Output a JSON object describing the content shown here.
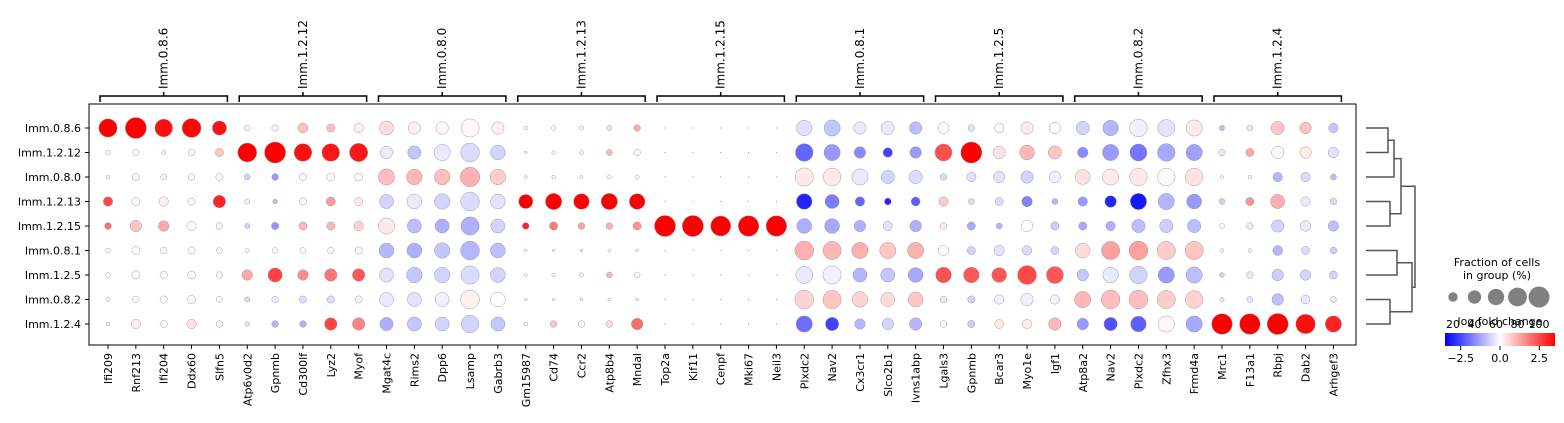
{
  "chart_data": {
    "type": "dotplot",
    "rows": [
      "Imm.0.8.6",
      "Imm.1.2.12",
      "Imm.0.8.0",
      "Imm.1.2.13",
      "Imm.1.2.15",
      "Imm.0.8.1",
      "Imm.1.2.5",
      "Imm.0.8.2",
      "Imm.1.2.4"
    ],
    "groups": [
      {
        "label": "Imm.0.8.6",
        "genes": [
          "Ifi209",
          "Rnf213",
          "Ifi204",
          "Ddx60",
          "Slfn5"
        ]
      },
      {
        "label": "Imm.1.2.12",
        "genes": [
          "Atp6v0d2",
          "Gpnmb",
          "Cd300lf",
          "Lyz2",
          "Myof"
        ]
      },
      {
        "label": "Imm.0.8.0",
        "genes": [
          "Mgat4c",
          "Rims2",
          "Dpp6",
          "Lsamp",
          "Gabrb3"
        ]
      },
      {
        "label": "Imm.1.2.13",
        "genes": [
          "Gm15987",
          "Cd74",
          "Ccr2",
          "Atp8b4",
          "Mndal"
        ]
      },
      {
        "label": "Imm.1.2.15",
        "genes": [
          "Top2a",
          "Kif11",
          "Cenpf",
          "Mki67",
          "Neil3"
        ]
      },
      {
        "label": "Imm.0.8.1",
        "genes": [
          "Plxdc2",
          "Nav2",
          "Cx3cr1",
          "Slco2b1",
          "Ivns1abp"
        ]
      },
      {
        "label": "Imm.1.2.5",
        "genes": [
          "Lgals3",
          "Gpnmb",
          "Bcar3",
          "Myo1e",
          "Igf1"
        ]
      },
      {
        "label": "Imm.0.8.2",
        "genes": [
          "Atp8a2",
          "Nav2",
          "Plxdc2",
          "Zfhx3",
          "Frmd4a"
        ]
      },
      {
        "label": "Imm.1.2.4",
        "genes": [
          "Mrc1",
          "F13a1",
          "Rbpj",
          "Dab2",
          "Arhgef3"
        ]
      }
    ],
    "fraction_pct": [
      [
        75,
        100,
        70,
        80,
        45,
        8,
        10,
        22,
        15,
        20,
        45,
        35,
        35,
        75,
        35,
        3,
        5,
        4,
        6,
        10,
        0,
        0,
        0,
        0,
        0,
        55,
        60,
        35,
        40,
        35,
        28,
        10,
        20,
        35,
        30,
        40,
        55,
        70,
        65,
        60,
        6,
        8,
        40,
        30,
        20
      ],
      [
        5,
        10,
        4,
        10,
        15,
        80,
        100,
        70,
        70,
        75,
        35,
        40,
        60,
        80,
        50,
        2,
        3,
        4,
        8,
        10,
        0,
        0,
        0,
        0,
        0,
        70,
        60,
        30,
        20,
        30,
        65,
        100,
        35,
        50,
        40,
        25,
        60,
        65,
        70,
        60,
        10,
        15,
        35,
        30,
        25
      ],
      [
        3,
        12,
        8,
        10,
        12,
        8,
        10,
        12,
        15,
        15,
        60,
        55,
        55,
        85,
        55,
        2,
        3,
        2,
        4,
        4,
        0,
        0,
        0,
        0,
        0,
        75,
        70,
        60,
        40,
        40,
        10,
        20,
        30,
        35,
        30,
        50,
        60,
        70,
        70,
        70,
        2,
        3,
        20,
        20,
        8
      ],
      [
        20,
        15,
        20,
        12,
        35,
        6,
        5,
        12,
        18,
        15,
        45,
        50,
        55,
        80,
        50,
        45,
        60,
        55,
        60,
        55,
        0,
        0,
        0,
        0,
        0,
        55,
        45,
        20,
        10,
        18,
        20,
        8,
        15,
        25,
        8,
        20,
        30,
        60,
        60,
        50,
        8,
        15,
        45,
        20,
        10
      ],
      [
        10,
        30,
        25,
        20,
        10,
        6,
        12,
        15,
        15,
        20,
        60,
        45,
        45,
        75,
        45,
        10,
        15,
        10,
        10,
        15,
        100,
        100,
        90,
        95,
        95,
        50,
        50,
        30,
        20,
        30,
        10,
        15,
        8,
        30,
        15,
        15,
        20,
        40,
        40,
        40,
        6,
        10,
        35,
        25,
        25
      ],
      [
        5,
        15,
        10,
        12,
        8,
        4,
        8,
        8,
        10,
        12,
        50,
        50,
        55,
        80,
        50,
        2,
        2,
        2,
        2,
        2,
        0,
        0,
        0,
        0,
        0,
        80,
        75,
        60,
        60,
        60,
        25,
        15,
        25,
        20,
        15,
        50,
        75,
        80,
        75,
        75,
        3,
        3,
        22,
        15,
        10
      ],
      [
        5,
        15,
        12,
        15,
        10,
        25,
        45,
        25,
        35,
        35,
        45,
        55,
        55,
        75,
        50,
        2,
        3,
        4,
        8,
        8,
        0,
        0,
        0,
        0,
        0,
        65,
        75,
        45,
        45,
        50,
        55,
        55,
        50,
        80,
        65,
        30,
        55,
        70,
        60,
        60,
        5,
        10,
        30,
        25,
        15
      ],
      [
        4,
        10,
        12,
        15,
        8,
        6,
        10,
        12,
        12,
        12,
        45,
        45,
        45,
        80,
        50,
        2,
        2,
        2,
        2,
        2,
        0,
        0,
        0,
        0,
        0,
        80,
        75,
        55,
        45,
        50,
        10,
        12,
        20,
        35,
        20,
        60,
        80,
        80,
        75,
        70,
        4,
        8,
        30,
        18,
        8
      ],
      [
        3,
        20,
        12,
        20,
        10,
        5,
        10,
        10,
        35,
        35,
        40,
        45,
        45,
        70,
        45,
        3,
        10,
        10,
        10,
        30,
        0,
        0,
        0,
        0,
        0,
        60,
        40,
        25,
        30,
        35,
        10,
        12,
        18,
        20,
        35,
        30,
        40,
        55,
        60,
        60,
        95,
        95,
        100,
        85,
        60
      ]
    ],
    "log_fold_change": [
      [
        3.5,
        3.5,
        3.3,
        3.4,
        3.3,
        0.2,
        0.2,
        0.9,
        0.9,
        0.2,
        0.5,
        0.2,
        0.1,
        0.1,
        0.2,
        0.1,
        0.1,
        0.2,
        0.5,
        1.2,
        0,
        0,
        0,
        0,
        0,
        -0.4,
        -0.8,
        -0.3,
        -0.3,
        -0.9,
        0.1,
        -0.4,
        0.1,
        0.3,
        0.1,
        -0.6,
        -1.0,
        -0.2,
        -0.4,
        0.3,
        -1.0,
        -0.3,
        0.8,
        0.8,
        -0.8
      ],
      [
        0.1,
        0.1,
        0.2,
        0.1,
        0.8,
        3.5,
        3.5,
        3.3,
        3.2,
        3.2,
        -0.3,
        -0.8,
        -0.3,
        -0.5,
        -0.6,
        0.1,
        0.1,
        0.2,
        1.0,
        0.1,
        0,
        0,
        0,
        0,
        0,
        -2.1,
        -1.4,
        -1.6,
        -2.6,
        -1.4,
        2.4,
        3.5,
        0.4,
        1.0,
        0.8,
        -1.6,
        -1.4,
        -1.9,
        -1.2,
        -1.3,
        -0.3,
        1.2,
        -0.1,
        0.3,
        -0.4
      ],
      [
        0.1,
        0.1,
        0.2,
        0.1,
        0.1,
        -0.6,
        -1.4,
        0.1,
        0.1,
        0.1,
        0.9,
        1.0,
        0.9,
        1.1,
        0.7,
        0.1,
        0.1,
        0.1,
        0.1,
        0.1,
        0,
        0,
        0,
        0,
        0,
        0.3,
        0.3,
        -0.3,
        -0.6,
        -0.5,
        -0.5,
        -0.4,
        -0.4,
        -0.6,
        -0.2,
        0.4,
        0.3,
        0.3,
        0.1,
        0.4,
        0.1,
        0.1,
        -1.0,
        -0.5,
        -0.9
      ],
      [
        2.5,
        0.1,
        0.2,
        0.1,
        3.0,
        -0.2,
        -0.9,
        0.1,
        1.4,
        0.3,
        -0.6,
        -0.3,
        -0.6,
        -0.5,
        -0.4,
        3.5,
        3.5,
        3.5,
        3.5,
        3.5,
        0,
        0,
        0,
        0,
        0,
        -3.0,
        -1.8,
        -2.1,
        -3.0,
        -2.2,
        0.7,
        -0.5,
        -0.5,
        -1.7,
        -1.0,
        -1.4,
        -3.0,
        -3.2,
        -1.0,
        -1.4,
        -0.6,
        1.5,
        1.1,
        -0.3,
        -0.5
      ],
      [
        2.0,
        0.8,
        1.2,
        0.1,
        0.2,
        -0.6,
        -1.5,
        1.0,
        1.0,
        0.6,
        0.3,
        -0.9,
        -1.1,
        -1.1,
        -0.6,
        3.0,
        1.8,
        1.3,
        1.1,
        1.5,
        3.5,
        3.5,
        3.5,
        3.5,
        3.5,
        -1.1,
        -1.2,
        -1.1,
        -0.4,
        -1.1,
        0.3,
        -1.2,
        -1.0,
        0.0,
        -0.7,
        -1.2,
        -1.1,
        -0.9,
        -0.7,
        -0.9,
        0.1,
        0.3,
        -0.6,
        -0.3,
        -0.9
      ],
      [
        0.1,
        0.1,
        0.1,
        0.1,
        0.1,
        0.1,
        0.1,
        0.1,
        0.1,
        0.1,
        -1.0,
        -1.1,
        -0.8,
        -1.0,
        -0.9,
        0.1,
        0.1,
        0.1,
        0.1,
        0.1,
        0,
        0,
        0,
        0,
        0,
        1.1,
        1.0,
        1.1,
        0.8,
        1.1,
        0.0,
        -0.6,
        -0.4,
        -0.5,
        -0.6,
        0.5,
        1.3,
        1.3,
        0.7,
        0.8,
        0.1,
        0.1,
        -1.0,
        -0.5,
        -0.7
      ],
      [
        0.1,
        0.1,
        0.1,
        0.1,
        0.1,
        1.2,
        2.6,
        1.6,
        1.9,
        2.3,
        -0.4,
        -0.8,
        -0.6,
        -0.5,
        -0.6,
        0.1,
        0.1,
        0.1,
        1.0,
        0.1,
        0,
        0,
        0,
        0,
        0,
        -0.3,
        -0.2,
        -1.0,
        -0.8,
        -1.2,
        2.4,
        2.3,
        2.3,
        2.5,
        2.3,
        -0.8,
        -0.3,
        -0.6,
        -1.4,
        -0.9,
        -0.6,
        -0.3,
        -0.7,
        -0.6,
        -0.6
      ],
      [
        0.1,
        0.1,
        0.1,
        0.1,
        0.1,
        -0.5,
        -0.3,
        -0.5,
        -0.5,
        -0.2,
        -0.3,
        -0.4,
        -0.2,
        0.2,
        0.0,
        0.1,
        0.1,
        0.1,
        0.1,
        0.1,
        0,
        0,
        0,
        0,
        0,
        0.6,
        0.8,
        0.6,
        0.5,
        0.8,
        -0.3,
        -0.6,
        -0.2,
        -0.2,
        -0.2,
        1.0,
        0.9,
        0.9,
        0.7,
        0.6,
        -0.3,
        -0.3,
        -0.9,
        -0.3,
        -0.3
      ],
      [
        0.2,
        0.2,
        0.1,
        0.4,
        0.2,
        -0.4,
        -1.0,
        -1.1,
        2.6,
        1.7,
        -1.1,
        -0.8,
        -0.6,
        -0.6,
        -0.8,
        0.1,
        0.8,
        0.1,
        0.5,
        2.0,
        0,
        0,
        0,
        0,
        0,
        -2.0,
        -2.6,
        -1.0,
        -0.6,
        -1.0,
        0.1,
        -0.7,
        0.3,
        0.3,
        1.0,
        -1.4,
        -2.4,
        -2.2,
        0.1,
        -1.2,
        3.5,
        3.5,
        3.5,
        3.3,
        3.0
      ]
    ],
    "size_legend": {
      "title": "Fraction of cells\nin group (%)",
      "ticks": [
        20,
        40,
        60,
        80,
        100
      ]
    },
    "color_legend": {
      "title": "log fold change",
      "ticks": [
        -2.5,
        0.0,
        2.5
      ],
      "tick_labels": [
        "−2.5",
        "0.0",
        "2.5"
      ],
      "vmin": -3.5,
      "vmax": 3.5,
      "cmap": "bwr"
    },
    "dendrogram": {
      "merges": [
        [
          0,
          1
        ],
        [
          2,
          "a"
        ],
        [
          3,
          4
        ],
        [
          "b",
          "c"
        ],
        [
          5,
          6
        ],
        [
          7,
          8
        ],
        [
          "e",
          "f"
        ],
        [
          "d",
          "g"
        ]
      ]
    },
    "colors": {
      "low": "#0000ff",
      "mid": "#ffffff",
      "high": "#ff0000",
      "axis": "#000000",
      "dendrogram": "#555555"
    }
  }
}
